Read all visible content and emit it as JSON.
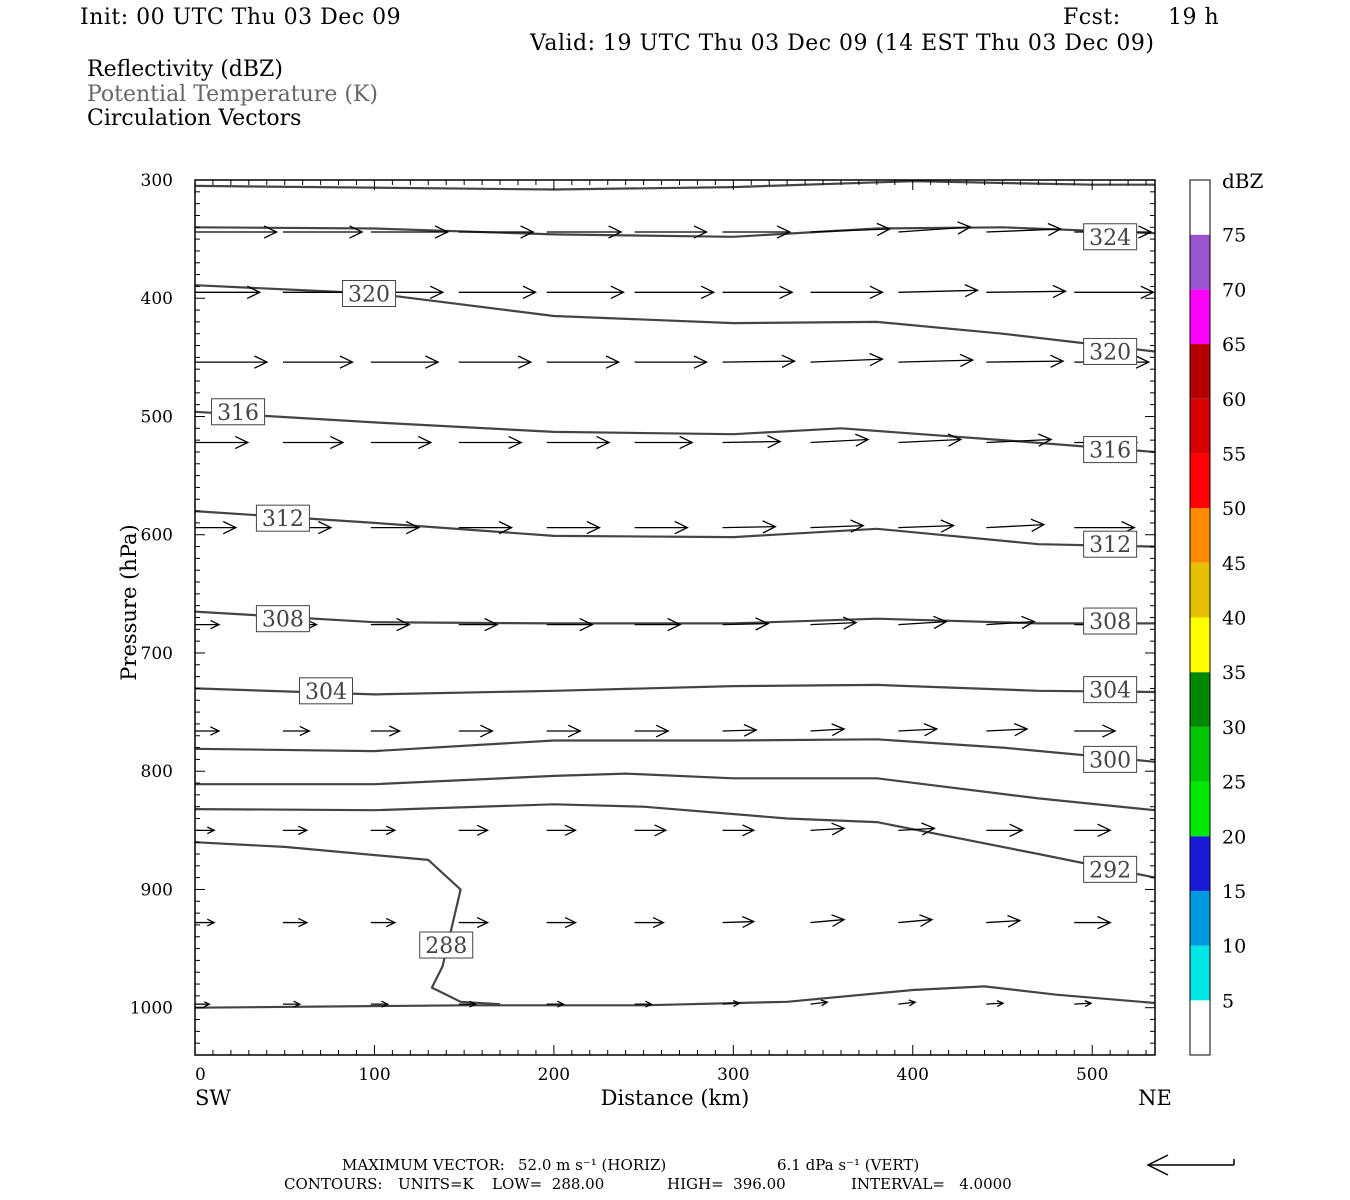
{
  "header": {
    "init": "Init: 00 UTC Thu 03 Dec 09",
    "fcst_label": "Fcst:",
    "fcst_value": "19 h",
    "valid": "Valid: 19 UTC Thu 03 Dec 09 (14 EST Thu 03 Dec 09)",
    "field1": "Reflectivity (dBZ)",
    "field2": "Potential Temperature (K)",
    "field3": "Circulation Vectors"
  },
  "footer": {
    "max_vector_label": "MAXIMUM VECTOR:",
    "max_vector_horiz": "52.0 m s⁻¹ (HORIZ)",
    "max_vector_vert": "6.1 dPa s⁻¹ (VERT)",
    "contours_label": "CONTOURS:",
    "units": "UNITS=K",
    "low": "LOW=  288.00",
    "high": "HIGH=  396.00",
    "interval": "INTERVAL=   4.0000"
  },
  "chart_data": {
    "type": "line",
    "xlabel": "Distance (km)",
    "ylabel": "Pressure (hPa)",
    "xlim": [
      0,
      535
    ],
    "ylim": [
      1040,
      300
    ],
    "x_ticks": [
      0,
      100,
      200,
      300,
      400,
      500
    ],
    "y_ticks": [
      300,
      400,
      500,
      600,
      700,
      800,
      900,
      1000
    ],
    "x_end_labels": {
      "left": "SW",
      "right": "NE"
    },
    "contour_color": "#444444",
    "contours": [
      {
        "label": "",
        "points": [
          [
            0,
            305
          ],
          [
            200,
            308
          ],
          [
            300,
            306
          ],
          [
            400,
            301
          ],
          [
            500,
            304
          ],
          [
            535,
            304
          ]
        ]
      },
      {
        "label": "324",
        "label_at": [
          510,
          348
        ],
        "points": [
          [
            0,
            340
          ],
          [
            100,
            341
          ],
          [
            200,
            346
          ],
          [
            300,
            348
          ],
          [
            380,
            341
          ],
          [
            450,
            340
          ],
          [
            535,
            345
          ]
        ]
      },
      {
        "label": "320",
        "label_at": [
          97,
          396
        ],
        "points": [
          [
            0,
            389
          ],
          [
            100,
            396
          ],
          [
            200,
            415
          ],
          [
            300,
            421
          ],
          [
            380,
            420
          ],
          [
            450,
            430
          ],
          [
            535,
            445
          ]
        ]
      },
      {
        "label": "320",
        "label_at": [
          510,
          445
        ],
        "points": []
      },
      {
        "label": "316",
        "label_at": [
          24,
          496
        ],
        "points": [
          [
            0,
            496
          ],
          [
            100,
            505
          ],
          [
            200,
            513
          ],
          [
            300,
            515
          ],
          [
            360,
            510
          ],
          [
            450,
            520
          ],
          [
            535,
            530
          ]
        ]
      },
      {
        "label": "316",
        "label_at": [
          510,
          528
        ],
        "points": []
      },
      {
        "label": "312",
        "label_at": [
          49,
          586
        ],
        "points": [
          [
            0,
            580
          ],
          [
            100,
            590
          ],
          [
            200,
            601
          ],
          [
            300,
            602
          ],
          [
            380,
            595
          ],
          [
            470,
            608
          ],
          [
            535,
            610
          ]
        ]
      },
      {
        "label": "312",
        "label_at": [
          510,
          608
        ],
        "points": []
      },
      {
        "label": "308",
        "label_at": [
          49,
          671
        ],
        "points": [
          [
            0,
            665
          ],
          [
            100,
            674
          ],
          [
            200,
            675
          ],
          [
            300,
            675
          ],
          [
            380,
            671
          ],
          [
            470,
            675
          ],
          [
            535,
            675
          ]
        ]
      },
      {
        "label": "308",
        "label_at": [
          510,
          673
        ],
        "points": []
      },
      {
        "label": "304",
        "label_at": [
          73,
          732
        ],
        "points": [
          [
            0,
            730
          ],
          [
            100,
            735
          ],
          [
            200,
            732
          ],
          [
            300,
            728
          ],
          [
            380,
            727
          ],
          [
            470,
            732
          ],
          [
            535,
            733
          ]
        ]
      },
      {
        "label": "304",
        "label_at": [
          510,
          731
        ],
        "points": []
      },
      {
        "label": "300",
        "label_at": [
          510,
          790
        ],
        "points": [
          [
            0,
            781
          ],
          [
            100,
            783
          ],
          [
            200,
            774
          ],
          [
            300,
            774
          ],
          [
            380,
            773
          ],
          [
            450,
            780
          ],
          [
            535,
            792
          ]
        ]
      },
      {
        "label": "",
        "points": [
          [
            0,
            811
          ],
          [
            100,
            811
          ],
          [
            200,
            804
          ],
          [
            240,
            802
          ],
          [
            300,
            806
          ],
          [
            380,
            806
          ],
          [
            470,
            823
          ],
          [
            535,
            833
          ]
        ]
      },
      {
        "label": "292",
        "label_at": [
          510,
          883
        ],
        "points": [
          [
            0,
            832
          ],
          [
            100,
            833
          ],
          [
            200,
            828
          ],
          [
            250,
            830
          ],
          [
            330,
            840
          ],
          [
            380,
            843
          ],
          [
            470,
            870
          ],
          [
            535,
            890
          ]
        ]
      },
      {
        "label": "288",
        "label_at": [
          140,
          947
        ],
        "points": [
          [
            0,
            860
          ],
          [
            50,
            864
          ],
          [
            130,
            875
          ],
          [
            148,
            900
          ],
          [
            138,
            965
          ],
          [
            132,
            983
          ],
          [
            148,
            995
          ],
          [
            170,
            997
          ]
        ]
      },
      {
        "label": "",
        "points": [
          [
            0,
            1000
          ],
          [
            150,
            998
          ],
          [
            250,
            998
          ],
          [
            330,
            995
          ],
          [
            400,
            985
          ],
          [
            440,
            982
          ],
          [
            480,
            989
          ],
          [
            535,
            996
          ]
        ]
      }
    ],
    "vector_rows": [
      {
        "p": 344,
        "x": [
          0,
          49,
          98,
          147,
          196,
          245,
          294,
          343,
          392,
          441,
          490
        ],
        "len": [
          34,
          33,
          32,
          31,
          31,
          30,
          28,
          33,
          30,
          31,
          32
        ],
        "dy": [
          0,
          0,
          0,
          0,
          0,
          0,
          0,
          -3,
          -5,
          -3,
          0
        ]
      },
      {
        "p": 395,
        "x": [
          0,
          49,
          98,
          147,
          196,
          245,
          294,
          343,
          392,
          441,
          490
        ],
        "len": [
          27,
          32,
          30,
          32,
          32,
          33,
          29,
          30,
          33,
          33,
          33
        ],
        "dy": [
          0,
          0,
          0,
          0,
          0,
          0,
          0,
          0,
          -2,
          -1,
          0
        ]
      },
      {
        "p": 454,
        "x": [
          0,
          49,
          98,
          147,
          196,
          245,
          294,
          343,
          392,
          441,
          490
        ],
        "len": [
          30,
          29,
          28,
          30,
          30,
          30,
          30,
          30,
          31,
          32,
          31
        ],
        "dy": [
          0,
          0,
          0,
          0,
          0,
          0,
          -1,
          -3,
          -2,
          -1,
          0
        ]
      },
      {
        "p": 522,
        "x": [
          0,
          49,
          98,
          147,
          196,
          245,
          294,
          343,
          392,
          441,
          490
        ],
        "len": [
          22,
          25,
          25,
          26,
          26,
          24,
          24,
          24,
          26,
          27,
          26
        ],
        "dy": [
          0,
          0,
          0,
          0,
          0,
          0,
          -1,
          -3,
          -3,
          -3,
          0
        ]
      },
      {
        "p": 594,
        "x": [
          0,
          49,
          98,
          147,
          196,
          245,
          294,
          343,
          392,
          441,
          490
        ],
        "len": [
          17,
          20,
          20,
          22,
          22,
          22,
          22,
          22,
          23,
          24,
          25
        ],
        "dy": [
          0,
          0,
          0,
          0,
          0,
          0,
          -1,
          -2,
          -2,
          -3,
          0
        ]
      },
      {
        "p": 676,
        "x": [
          0,
          49,
          98,
          147,
          196,
          245,
          294,
          343,
          392,
          441,
          490
        ],
        "len": [
          10,
          14,
          16,
          16,
          19,
          19,
          19,
          19,
          20,
          20,
          20
        ],
        "dy": [
          0,
          0,
          0,
          0,
          0,
          0,
          -1,
          -2,
          -3,
          -3,
          0
        ]
      },
      {
        "p": 766,
        "x": [
          0,
          49,
          98,
          147,
          196,
          245,
          294,
          343,
          392,
          441,
          490
        ],
        "len": [
          10,
          11,
          12,
          14,
          14,
          14,
          14,
          14,
          16,
          17,
          17
        ],
        "dy": [
          0,
          0,
          0,
          0,
          0,
          0,
          -1,
          -2,
          -2,
          -2,
          0
        ]
      },
      {
        "p": 850,
        "x": [
          0,
          49,
          98,
          147,
          196,
          245,
          294,
          343,
          392,
          441,
          490
        ],
        "len": [
          8,
          10,
          10,
          12,
          12,
          13,
          13,
          14,
          15,
          15,
          15
        ],
        "dy": [
          0,
          0,
          0,
          0,
          0,
          0,
          0,
          -2,
          -2,
          0,
          0
        ]
      },
      {
        "p": 928,
        "x": [
          0,
          49,
          98,
          147,
          196,
          245,
          294,
          343,
          392,
          441,
          490
        ],
        "len": [
          8,
          10,
          10,
          12,
          12,
          12,
          13,
          14,
          14,
          14,
          15
        ],
        "dy": [
          0,
          0,
          0,
          0,
          0,
          0,
          -1,
          -3,
          -3,
          -2,
          0
        ]
      },
      {
        "p": 997,
        "x": [
          0,
          49,
          98,
          147,
          196,
          245,
          294,
          343,
          392,
          441,
          490
        ],
        "len": [
          6,
          7,
          7,
          7,
          7,
          7,
          7,
          7,
          7,
          7,
          7
        ],
        "dy": [
          0,
          0,
          0,
          0,
          0,
          0,
          -1,
          -2,
          -2,
          -1,
          -1
        ]
      }
    ],
    "colorbar": {
      "title": "dBZ",
      "bins": [
        {
          "label": "",
          "color": "#ffffff"
        },
        {
          "label": "5",
          "color": "#00e5e5"
        },
        {
          "label": "10",
          "color": "#0099e0"
        },
        {
          "label": "15",
          "color": "#1a1adb"
        },
        {
          "label": "20",
          "color": "#00ea00"
        },
        {
          "label": "25",
          "color": "#00c800"
        },
        {
          "label": "30",
          "color": "#008800"
        },
        {
          "label": "35",
          "color": "#ffff00"
        },
        {
          "label": "40",
          "color": "#e8c000"
        },
        {
          "label": "45",
          "color": "#ff8c00"
        },
        {
          "label": "50",
          "color": "#ff0000"
        },
        {
          "label": "55",
          "color": "#d80000"
        },
        {
          "label": "60",
          "color": "#b40000"
        },
        {
          "label": "65",
          "color": "#ff00ff"
        },
        {
          "label": "70",
          "color": "#9955cc"
        },
        {
          "label": "75",
          "color": "#ffffff"
        }
      ]
    }
  }
}
